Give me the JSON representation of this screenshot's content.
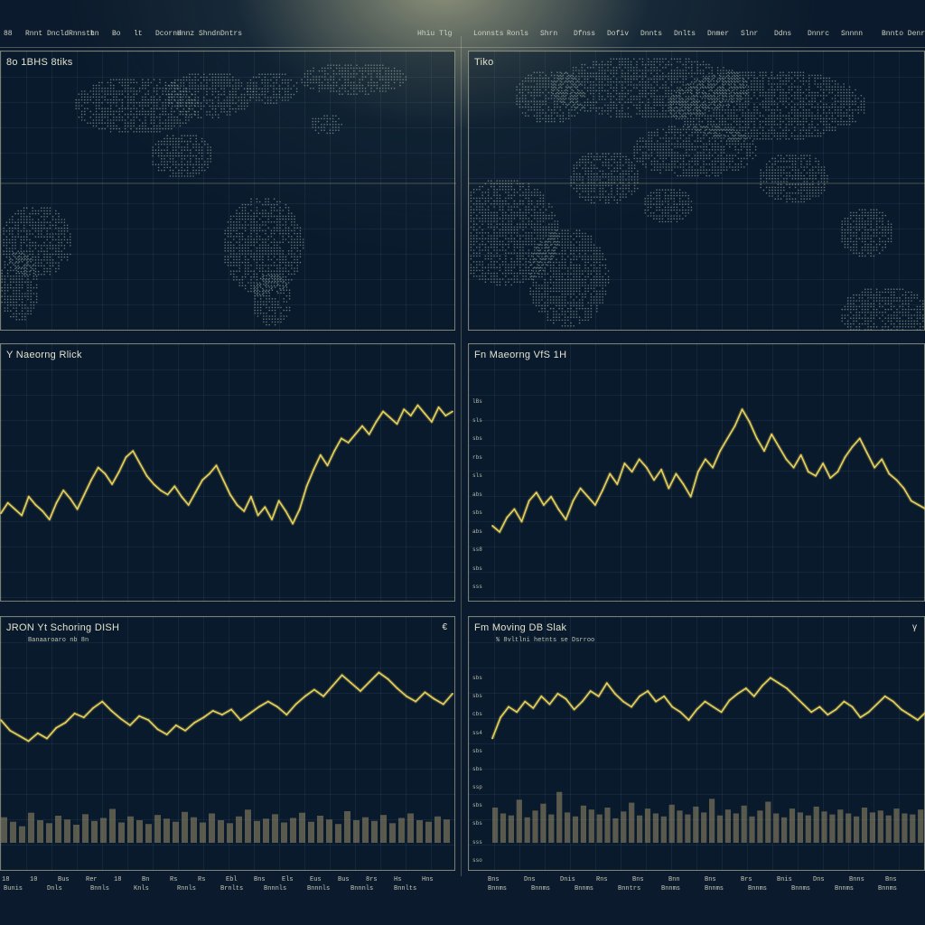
{
  "colors": {
    "line": "#e9d25a",
    "volume": "#9a8f6a",
    "map_dots": "#9fb3a6",
    "accent_glow": "#fff6c0"
  },
  "topbar": {
    "left_labels": [
      "88",
      "Rnnt",
      "Dncld",
      "Rnnstt",
      "hn",
      "Bo",
      "lt",
      "Dcornd",
      "Hnnz",
      "Shndn",
      "Dntrs"
    ],
    "left_mid": "Hhiu Tlg",
    "right_labels": [
      "Lonnsts",
      "Ronls",
      "Shrn",
      "Dfnss",
      "Dofiv",
      "Dnnts",
      "Dnlts",
      "Dnmer",
      "Slnr",
      "Ddns",
      "Dnnrc",
      "Snnnn"
    ],
    "right_end": "Bnnto Denr"
  },
  "panels": {
    "map_left": {
      "title": "8o 1BHS 8tiks"
    },
    "map_right": {
      "title": "Tiko"
    },
    "chart_tl": {
      "title": "Y Naeorng Rlick"
    },
    "chart_tr": {
      "title": "Fn Maeorng VfS 1H"
    },
    "chart_bl": {
      "title": "JRON Yt Schoring DISH",
      "subtitle": "Banaaroaro nb 8n",
      "corner": "€"
    },
    "chart_br": {
      "title": "Fm Moving DB Slak",
      "subtitle": "% 8vltlni hetnts se Dsrroo",
      "corner": "γ"
    }
  },
  "axis_ticks_right": [
    "lBs",
    "sls",
    "sbs",
    "rbs",
    "sls",
    "abs",
    "sbs",
    "abs",
    "ss8",
    "sbs",
    "sss"
  ],
  "axis_ticks_br": [
    "sbs",
    "sbs",
    "cbs",
    "ss4",
    "sbs",
    "sbs",
    "ssp",
    "sbs",
    "sbs",
    "sss",
    "sso"
  ],
  "bottombar": {
    "left_top": [
      "18",
      "10",
      "Bus",
      "Rer",
      "18",
      "Bn",
      "Rs",
      "Rs",
      "Ebl",
      "Bns",
      "Els",
      "Eus",
      "Bus",
      "8rs",
      "Hs",
      "Hns"
    ],
    "left_bottom": [
      "Bunis",
      "Dnls",
      "Bnnls",
      "Knls",
      "Rnnls",
      "Brnlts",
      "Bnnnls",
      "Bnnnls",
      "Bnnnls",
      "Bnnlts"
    ],
    "right_top": [
      "Bns",
      "Dns",
      "Dnis",
      "Rns",
      "Bns",
      "Bnn",
      "Bns",
      "Brs",
      "Bnis",
      "Dns",
      "Bnns",
      "Bns"
    ],
    "right_bottom": [
      "Bnnms",
      "Bnnms",
      "Bnnms",
      "Bnntrs",
      "Bnnms",
      "Bnnms",
      "Bnnms",
      "Bnnms",
      "Bnnms",
      "Bnnms"
    ]
  },
  "chart_data": [
    {
      "type": "line",
      "title": "Y Naeorng Rlick",
      "values": [
        36,
        41,
        38,
        35,
        44,
        40,
        37,
        33,
        41,
        47,
        43,
        38,
        45,
        52,
        58,
        55,
        50,
        56,
        63,
        66,
        60,
        54,
        50,
        47,
        45,
        49,
        44,
        40,
        46,
        52,
        55,
        59,
        52,
        45,
        40,
        37,
        44,
        35,
        39,
        33,
        42,
        37,
        31,
        38,
        49,
        57,
        64,
        59,
        66,
        72,
        70,
        74,
        78,
        74,
        80,
        85,
        82,
        79,
        86,
        83,
        88,
        84,
        80,
        87,
        83,
        85
      ],
      "ylim": [
        0,
        100
      ]
    },
    {
      "type": "line",
      "title": "Fn Maeorng VfS 1H",
      "values": [
        30,
        27,
        34,
        38,
        32,
        42,
        46,
        40,
        44,
        38,
        33,
        42,
        48,
        44,
        40,
        47,
        55,
        50,
        60,
        56,
        62,
        58,
        52,
        57,
        48,
        55,
        50,
        44,
        56,
        62,
        58,
        66,
        72,
        78,
        86,
        80,
        72,
        66,
        74,
        68,
        62,
        58,
        64,
        56,
        54,
        60,
        53,
        56,
        63,
        68,
        72,
        65,
        58,
        62,
        55,
        52,
        48,
        42,
        40,
        38
      ],
      "ylim": [
        0,
        100
      ]
    },
    {
      "type": "line",
      "title": "JRON Yt Schoring DISH",
      "subtitle": "Banaaroaro nb 8n",
      "values": [
        52,
        44,
        40,
        36,
        42,
        38,
        46,
        50,
        57,
        54,
        61,
        66,
        59,
        53,
        48,
        55,
        52,
        45,
        41,
        48,
        44,
        50,
        54,
        59,
        56,
        60,
        52,
        57,
        62,
        66,
        62,
        56,
        64,
        70,
        75,
        70,
        78,
        86,
        80,
        74,
        81,
        88,
        83,
        76,
        70,
        66,
        73,
        68,
        64,
        72
      ],
      "volume": [
        34,
        28,
        22,
        40,
        30,
        26,
        36,
        31,
        24,
        38,
        29,
        33,
        45,
        27,
        35,
        30,
        25,
        37,
        32,
        28,
        41,
        34,
        27,
        39,
        30,
        26,
        35,
        44,
        29,
        32,
        38,
        27,
        33,
        40,
        28,
        36,
        31,
        25,
        42,
        30,
        34,
        29,
        37,
        26,
        33,
        39,
        30,
        28,
        35,
        31
      ],
      "ylim": [
        0,
        100
      ]
    },
    {
      "type": "line",
      "title": "Fm Moving DB Slak",
      "subtitle": "% 8vltlni hetnts se Dsrroo",
      "values": [
        38,
        54,
        62,
        58,
        66,
        61,
        70,
        64,
        72,
        68,
        60,
        66,
        74,
        70,
        80,
        72,
        66,
        62,
        70,
        74,
        66,
        70,
        62,
        58,
        52,
        60,
        66,
        62,
        58,
        67,
        72,
        76,
        70,
        78,
        84,
        80,
        76,
        70,
        64,
        58,
        62,
        56,
        60,
        66,
        62,
        54,
        58,
        64,
        70,
        66,
        60,
        56,
        52,
        58
      ],
      "volume": [
        36,
        30,
        28,
        44,
        26,
        33,
        40,
        29,
        52,
        31,
        27,
        38,
        34,
        29,
        36,
        25,
        32,
        41,
        28,
        35,
        30,
        27,
        39,
        33,
        29,
        37,
        31,
        45,
        28,
        34,
        30,
        38,
        27,
        33,
        42,
        30,
        26,
        35,
        31,
        28,
        37,
        32,
        29,
        34,
        30,
        27,
        36,
        31,
        33,
        28,
        35,
        30,
        29,
        34
      ],
      "ylim": [
        0,
        100
      ]
    }
  ]
}
